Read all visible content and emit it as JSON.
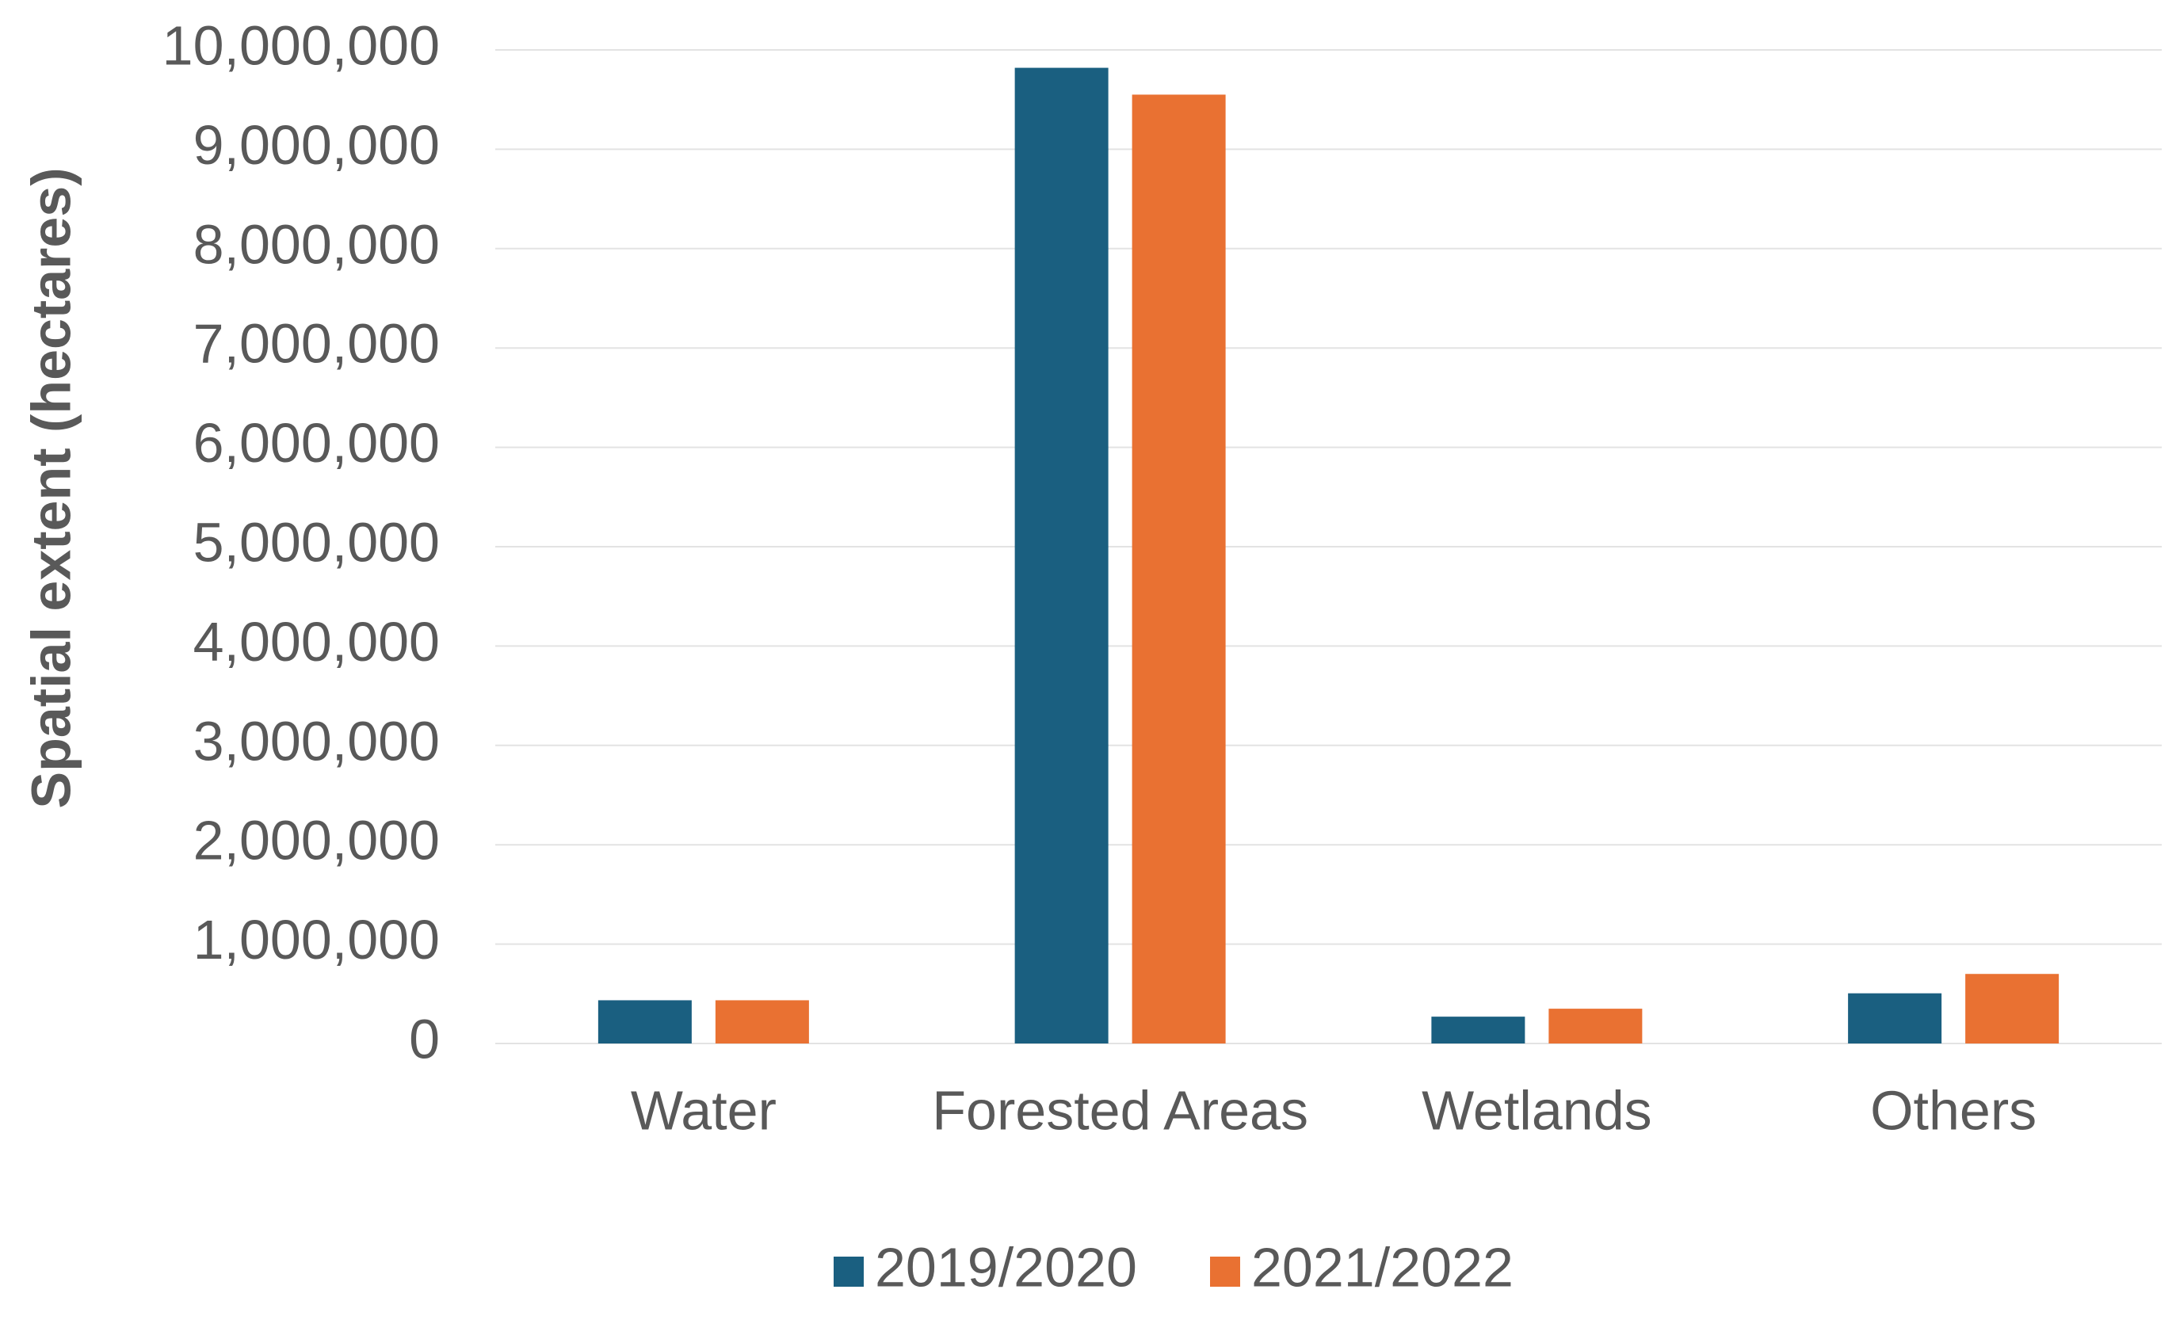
{
  "chart_data": {
    "type": "bar",
    "y_label": "Spatial extent (hectares)",
    "categories": [
      "Water",
      "Forested Areas",
      "Wetlands",
      "Others"
    ],
    "series": [
      {
        "name": "2019/2020",
        "color": "#1a5f80",
        "values": [
          435000,
          9820000,
          270000,
          505000
        ]
      },
      {
        "name": "2021/2022",
        "color": "#e97132",
        "values": [
          435000,
          9550000,
          350000,
          700000
        ]
      }
    ],
    "ylim": [
      0,
      10000000
    ],
    "yticks": [
      0,
      {
        "value": 1000000,
        "label": "1,000,000"
      },
      {
        "value": 2000000,
        "label": "2,000,000"
      },
      {
        "value": 3000000,
        "label": "3,000,000"
      },
      {
        "value": 4000000,
        "label": "4,000,000"
      },
      {
        "value": 5000000,
        "label": "5,000,000"
      },
      {
        "value": 6000000,
        "label": "6,000,000"
      },
      {
        "value": 7000000,
        "label": "7,000,000"
      },
      {
        "value": 8000000,
        "label": "8,000,000"
      },
      {
        "value": 9000000,
        "label": "9,000,000"
      },
      {
        "value": 10000000,
        "label": "10,000,000"
      }
    ],
    "grid": true,
    "legend": "bottom"
  }
}
